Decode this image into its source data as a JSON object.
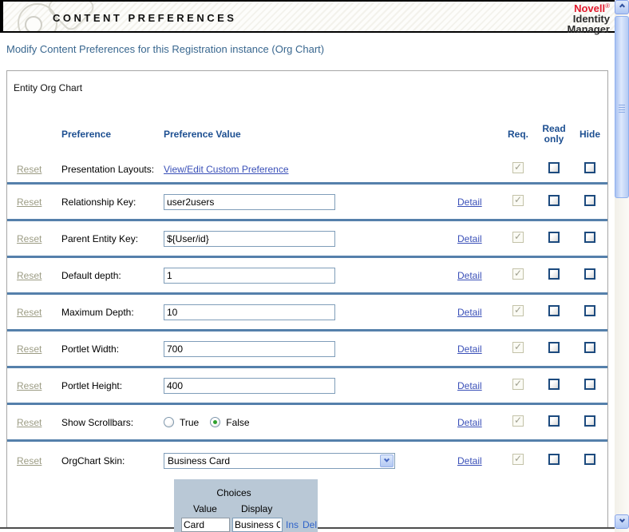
{
  "header": {
    "title": "CONTENT PREFERENCES",
    "logo": {
      "brand": "Novell",
      "registered": "®",
      "product_line1": "Identity",
      "product_line2": "Manager"
    }
  },
  "subtitle": "Modify Content Preferences for this Registration instance (Org Chart)",
  "panel": {
    "section_title": "Entity Org Chart",
    "reset_label": "Reset",
    "detail_label": "Detail",
    "columns": {
      "preference": "Preference",
      "preference_value": "Preference Value",
      "req": "Req.",
      "read_only_line1": "Read",
      "read_only_line2": "only",
      "hide": "Hide"
    },
    "rows": [
      {
        "label": "Presentation Layouts:",
        "value_type": "link",
        "value": "View/Edit Custom Preference",
        "has_detail": false,
        "req_checked": true,
        "read_only_checked": false,
        "hide_checked": false
      },
      {
        "label": "Relationship Key:",
        "value_type": "text-input",
        "value": "user2users",
        "has_detail": true,
        "req_checked": true,
        "read_only_checked": false,
        "hide_checked": false
      },
      {
        "label": "Parent Entity Key:",
        "value_type": "text-input",
        "value": "${User/id}",
        "has_detail": true,
        "req_checked": true,
        "read_only_checked": false,
        "hide_checked": false
      },
      {
        "label": "Default depth:",
        "value_type": "text-input",
        "value": "1",
        "has_detail": true,
        "req_checked": true,
        "read_only_checked": false,
        "hide_checked": false
      },
      {
        "label": "Maximum Depth:",
        "value_type": "text-input",
        "value": "10",
        "has_detail": true,
        "req_checked": true,
        "read_only_checked": false,
        "hide_checked": false
      },
      {
        "label": "Portlet Width:",
        "value_type": "text-input",
        "value": "700",
        "has_detail": true,
        "req_checked": true,
        "read_only_checked": false,
        "hide_checked": false
      },
      {
        "label": "Portlet Height:",
        "value_type": "text-input",
        "value": "400",
        "has_detail": true,
        "req_checked": true,
        "read_only_checked": false,
        "hide_checked": false
      },
      {
        "label": "Show Scrollbars:",
        "value_type": "radio-group",
        "options": [
          "True",
          "False"
        ],
        "selected": "False",
        "has_detail": true,
        "req_checked": true,
        "read_only_checked": false,
        "hide_checked": false
      },
      {
        "label": "OrgChart Skin:",
        "value_type": "dropdown",
        "value": "Business Card",
        "has_detail": true,
        "req_checked": true,
        "read_only_checked": false,
        "hide_checked": false
      }
    ]
  },
  "choices_editor": {
    "title": "Choices",
    "columns": {
      "value": "Value",
      "display": "Display"
    },
    "rows": [
      {
        "value": "Card",
        "display": "Business Ca"
      }
    ],
    "actions": {
      "insert": "Ins",
      "delete": "Del"
    }
  },
  "icons": {
    "check": "✓"
  },
  "colors": {
    "novell_red": "#e2192c",
    "subtitle_blue": "#39678f",
    "column_header_blue": "#1d4f91",
    "row_divider_blue": "#5580ab",
    "link_blue": "#3a50b8",
    "reset_gray": "#9c9c84",
    "input_border": "#7f9db9",
    "checkbox_border": "#1c4a7e",
    "radio_selected_green": "#2ea12e",
    "choices_panel_bg": "#b9c8d6",
    "scrollbar_blue": "#aec6f3"
  }
}
